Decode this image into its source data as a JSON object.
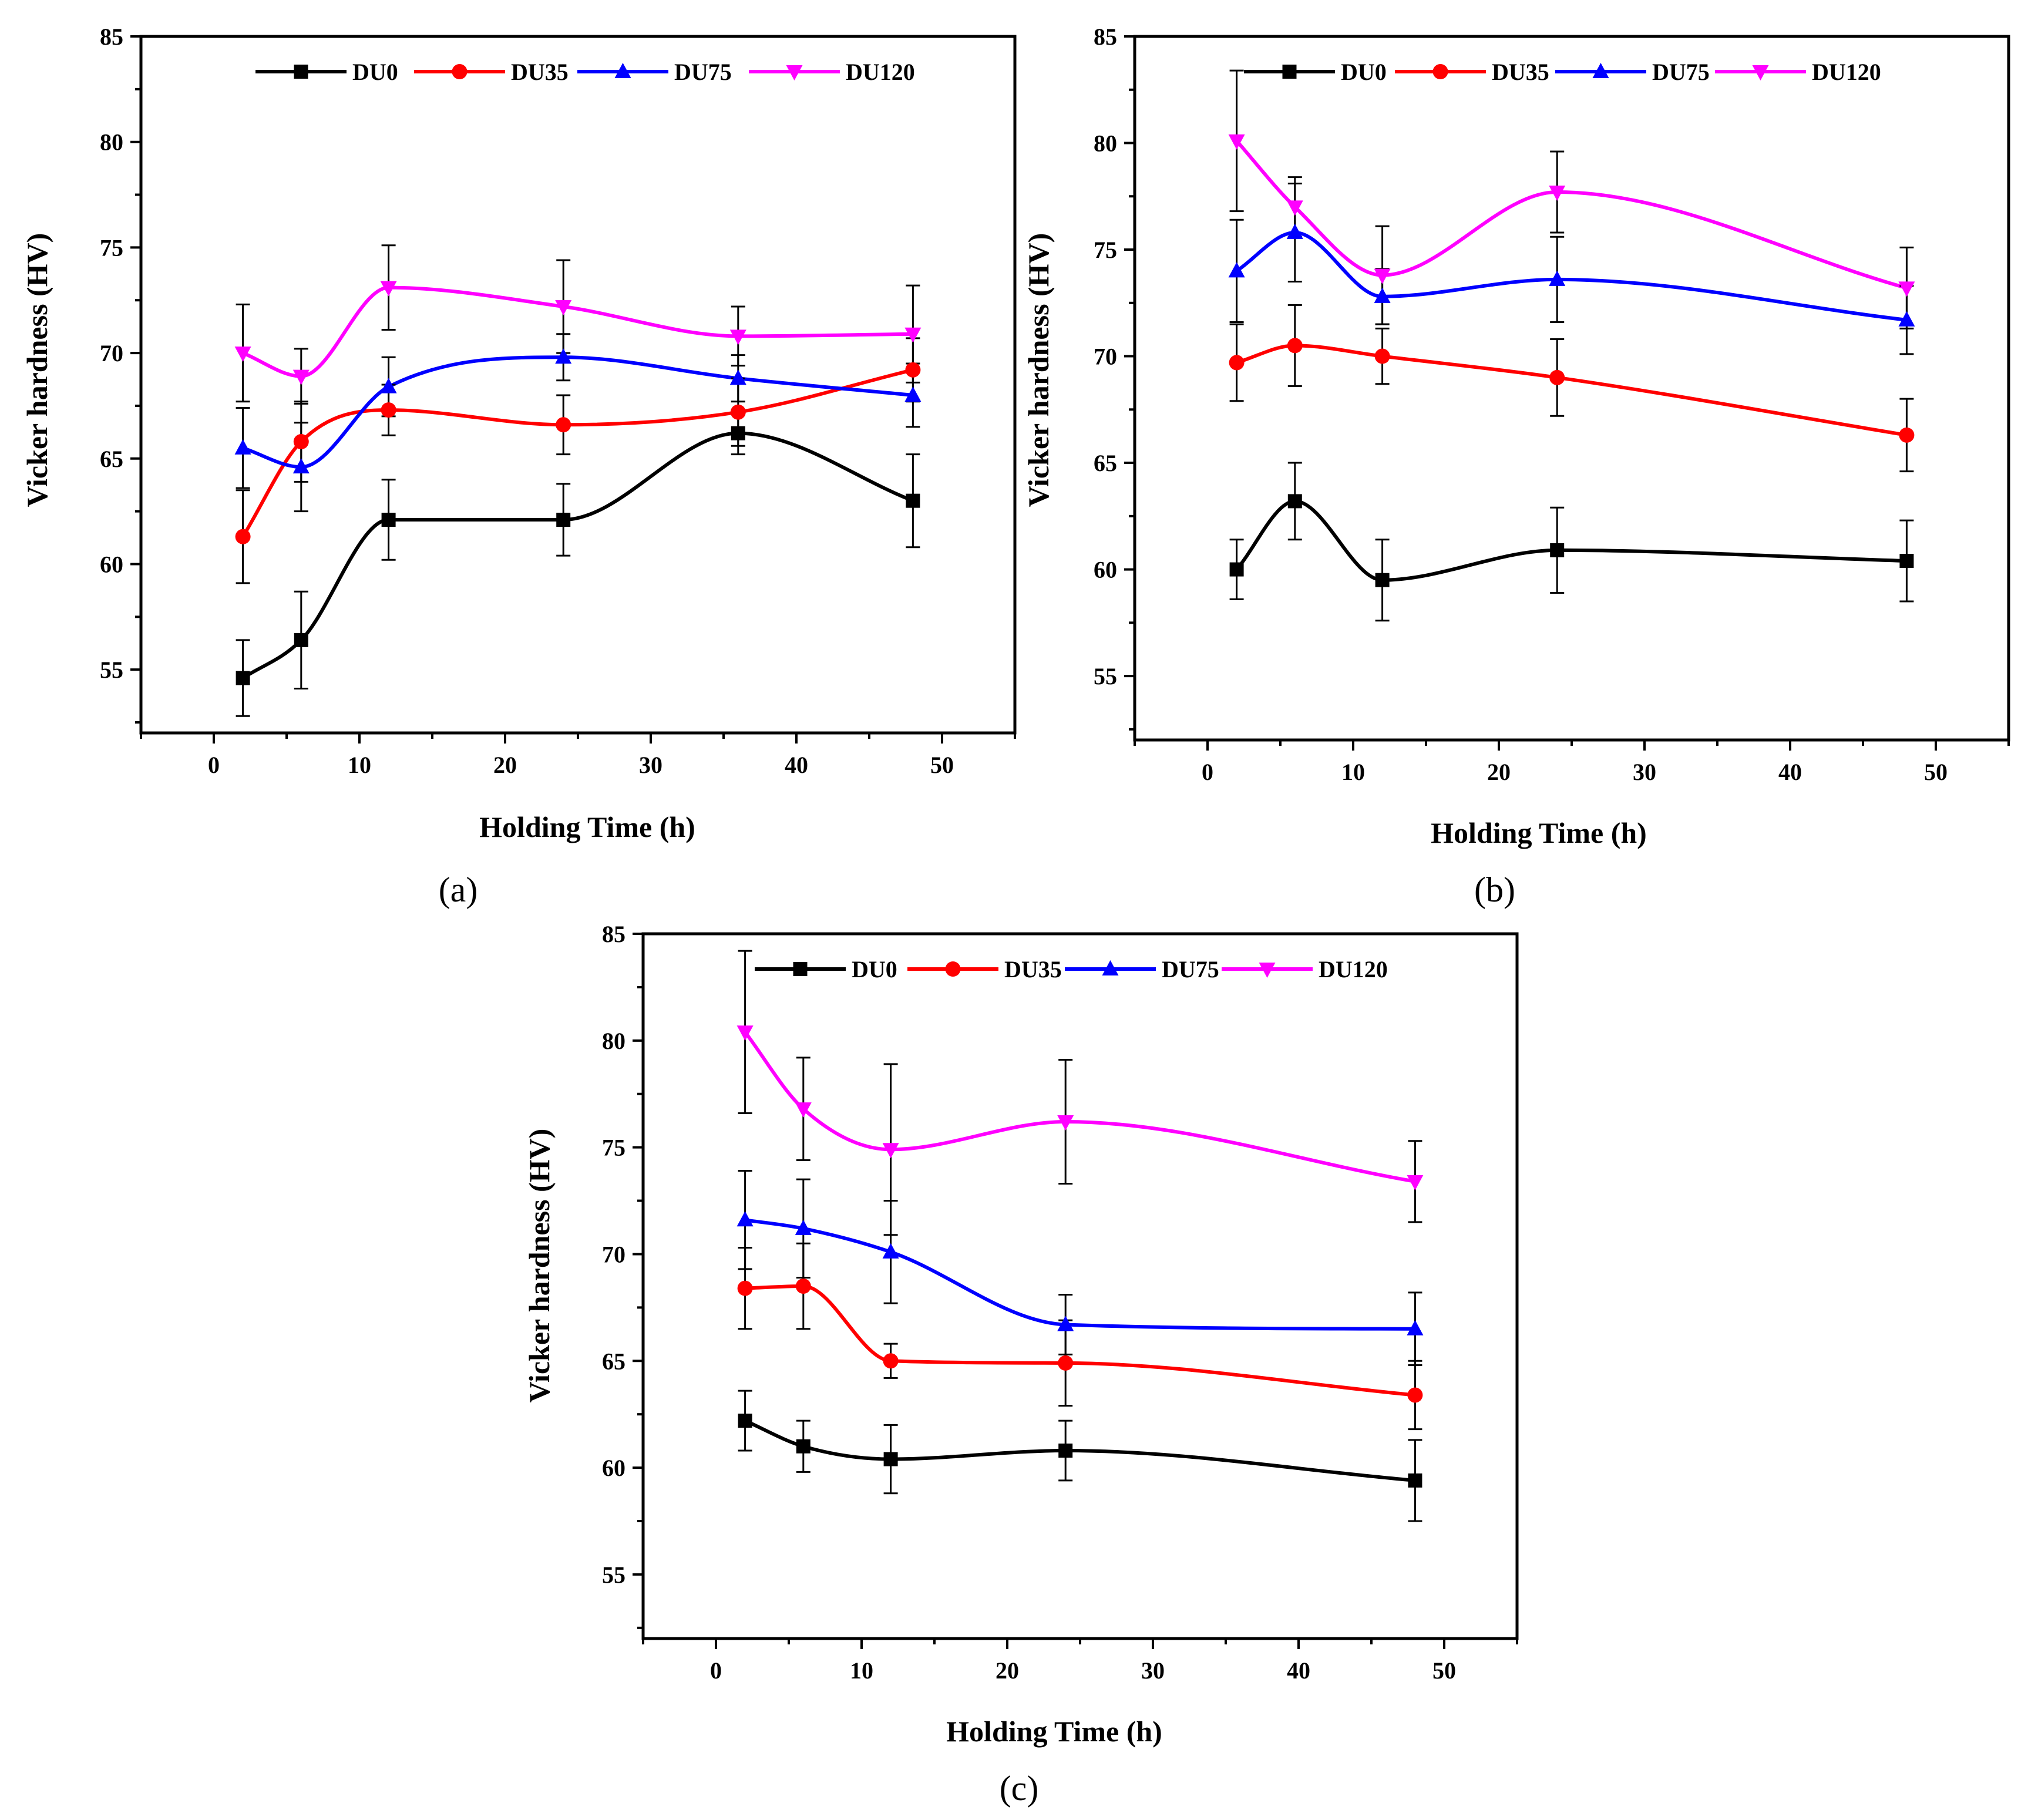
{
  "chart_data": [
    {
      "panel": "(a)",
      "type": "line",
      "xlabel": "Holding Time (h)",
      "ylabel": "Vicker hardness (HV)",
      "xlim": [
        -5,
        55
      ],
      "ylim": [
        52,
        85
      ],
      "xticks": [
        0,
        10,
        20,
        30,
        40,
        50
      ],
      "yticks": [
        55,
        60,
        65,
        70,
        75,
        80,
        85
      ],
      "legend_position": "top",
      "series": [
        {
          "name": "DU0",
          "color": "#000000",
          "marker": "square",
          "x": [
            2,
            6,
            12,
            24,
            36,
            48
          ],
          "values": [
            54.6,
            56.4,
            62.1,
            62.1,
            66.2,
            63.0
          ],
          "error": [
            1.8,
            2.3,
            1.9,
            1.7,
            1.0,
            2.2
          ]
        },
        {
          "name": "DU35",
          "color": "#ff0000",
          "marker": "circle",
          "x": [
            2,
            6,
            12,
            24,
            36,
            48
          ],
          "values": [
            61.3,
            65.8,
            67.3,
            66.6,
            67.2,
            69.2
          ],
          "error": [
            2.2,
            1.9,
            1.2,
            1.4,
            1.6,
            1.5
          ]
        },
        {
          "name": "DU75",
          "color": "#0000ff",
          "marker": "triangle-up",
          "x": [
            2,
            6,
            12,
            24,
            36,
            48
          ],
          "values": [
            65.5,
            64.6,
            68.4,
            69.8,
            68.8,
            68.0
          ],
          "error": [
            1.9,
            2.1,
            1.4,
            1.1,
            1.1,
            1.5
          ]
        },
        {
          "name": "DU120",
          "color": "#ff00ff",
          "marker": "triangle-down",
          "x": [
            2,
            6,
            12,
            24,
            36,
            48
          ],
          "values": [
            70.0,
            68.9,
            73.1,
            72.2,
            70.8,
            70.9
          ],
          "error": [
            2.3,
            1.3,
            2.0,
            2.2,
            1.4,
            2.3
          ]
        }
      ]
    },
    {
      "panel": "(b)",
      "type": "line",
      "xlabel": "Holding Time (h)",
      "ylabel": "Vicker hardness (HV)",
      "xlim": [
        -5,
        55
      ],
      "ylim": [
        52,
        85
      ],
      "xticks": [
        0,
        10,
        20,
        30,
        40,
        50
      ],
      "yticks": [
        55,
        60,
        65,
        70,
        75,
        80,
        85
      ],
      "legend_position": "top",
      "series": [
        {
          "name": "DU0",
          "color": "#000000",
          "marker": "square",
          "x": [
            2,
            6,
            12,
            24,
            48
          ],
          "values": [
            60.0,
            63.2,
            59.5,
            60.9,
            60.4
          ],
          "error": [
            1.4,
            1.8,
            1.9,
            2.0,
            1.9
          ]
        },
        {
          "name": "DU35",
          "color": "#ff0000",
          "marker": "circle",
          "x": [
            2,
            6,
            12,
            24,
            48
          ],
          "values": [
            69.7,
            70.5,
            70.0,
            69.0,
            66.3
          ],
          "error": [
            1.8,
            1.9,
            1.3,
            1.8,
            1.7
          ]
        },
        {
          "name": "DU75",
          "color": "#0000ff",
          "marker": "triangle-up",
          "x": [
            2,
            6,
            12,
            24,
            48
          ],
          "values": [
            74.0,
            75.8,
            72.8,
            73.6,
            71.7
          ],
          "error": [
            2.4,
            2.3,
            1.3,
            2.0,
            1.6
          ]
        },
        {
          "name": "DU120",
          "color": "#ff00ff",
          "marker": "triangle-down",
          "x": [
            2,
            6,
            12,
            24,
            48
          ],
          "values": [
            80.1,
            77.0,
            73.8,
            77.7,
            73.2
          ],
          "error": [
            3.3,
            1.4,
            2.3,
            1.9,
            1.9
          ]
        }
      ]
    },
    {
      "panel": "(c)",
      "type": "line",
      "xlabel": "Holding Time (h)",
      "ylabel": "Vicker hardness (HV)",
      "xlim": [
        -5,
        55
      ],
      "ylim": [
        52,
        85
      ],
      "xticks": [
        0,
        10,
        20,
        30,
        40,
        50
      ],
      "yticks": [
        55,
        60,
        65,
        70,
        75,
        80,
        85
      ],
      "legend_position": "top",
      "series": [
        {
          "name": "DU0",
          "color": "#000000",
          "marker": "square",
          "x": [
            2,
            6,
            12,
            24,
            48
          ],
          "values": [
            62.2,
            61.0,
            60.4,
            60.8,
            59.4
          ],
          "error": [
            1.4,
            1.2,
            1.6,
            1.4,
            1.9
          ]
        },
        {
          "name": "DU35",
          "color": "#ff0000",
          "marker": "circle",
          "x": [
            2,
            6,
            12,
            24,
            48
          ],
          "values": [
            68.4,
            68.5,
            65.0,
            64.9,
            63.4
          ],
          "error": [
            1.9,
            2.0,
            0.8,
            2.0,
            1.6
          ]
        },
        {
          "name": "DU75",
          "color": "#0000ff",
          "marker": "triangle-up",
          "x": [
            2,
            6,
            12,
            24,
            48
          ],
          "values": [
            71.6,
            71.2,
            70.1,
            66.7,
            66.5
          ],
          "error": [
            2.3,
            2.3,
            2.4,
            1.4,
            1.7
          ]
        },
        {
          "name": "DU120",
          "color": "#ff00ff",
          "marker": "triangle-down",
          "x": [
            2,
            6,
            12,
            24,
            48
          ],
          "values": [
            80.4,
            76.8,
            74.9,
            76.2,
            73.4
          ],
          "error": [
            3.8,
            2.4,
            4.0,
            2.9,
            1.9
          ]
        }
      ]
    }
  ]
}
